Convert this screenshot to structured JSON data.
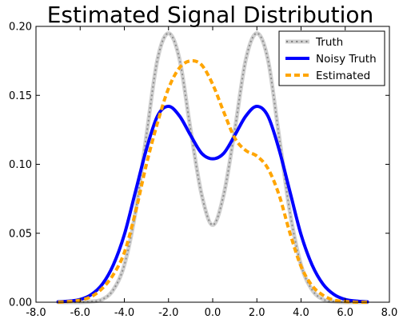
{
  "chart_data": {
    "type": "line",
    "title": "Estimated Signal Distribution",
    "xlabel": "",
    "ylabel": "",
    "xlim": [
      -8.0,
      8.0
    ],
    "ylim": [
      0.0,
      0.2
    ],
    "xticks": [
      "-8.0",
      "-6.0",
      "-4.0",
      "-2.0",
      "0.0",
      "2.0",
      "4.0",
      "6.0",
      "8.0"
    ],
    "yticks": [
      "0.00",
      "0.05",
      "0.10",
      "0.15",
      "0.20"
    ],
    "grid": false,
    "legend_position": "top-right",
    "series": [
      {
        "name": "Truth",
        "color": "#b0b0b0",
        "style": "solid-with-star-markers",
        "x": [
          -7.0,
          -6.5,
          -6.0,
          -5.5,
          -5.0,
          -4.5,
          -4.0,
          -3.5,
          -3.0,
          -2.5,
          -2.0,
          -1.5,
          -1.0,
          -0.5,
          0.0,
          0.5,
          1.0,
          1.5,
          2.0,
          2.5,
          3.0,
          3.5,
          4.0,
          4.5,
          5.0,
          5.5,
          6.0,
          6.5,
          7.0
        ],
        "y": [
          0.0,
          0.0,
          0.0,
          0.0005,
          0.002,
          0.009,
          0.027,
          0.065,
          0.121,
          0.176,
          0.195,
          0.176,
          0.125,
          0.078,
          0.056,
          0.078,
          0.125,
          0.176,
          0.195,
          0.176,
          0.121,
          0.065,
          0.027,
          0.009,
          0.002,
          0.0005,
          0.0,
          0.0,
          0.0
        ]
      },
      {
        "name": "Noisy Truth",
        "color": "#0000ff",
        "style": "solid",
        "x": [
          -7.0,
          -6.5,
          -6.0,
          -5.5,
          -5.0,
          -4.5,
          -4.0,
          -3.5,
          -3.0,
          -2.5,
          -2.0,
          -1.5,
          -1.0,
          -0.5,
          0.0,
          0.5,
          1.0,
          1.5,
          2.0,
          2.5,
          3.0,
          3.5,
          4.0,
          4.5,
          5.0,
          5.5,
          6.0,
          6.5,
          7.0
        ],
        "y": [
          0.0003,
          0.0008,
          0.002,
          0.0055,
          0.013,
          0.027,
          0.049,
          0.08,
          0.111,
          0.135,
          0.142,
          0.135,
          0.121,
          0.108,
          0.104,
          0.108,
          0.121,
          0.135,
          0.142,
          0.135,
          0.111,
          0.08,
          0.049,
          0.027,
          0.013,
          0.0055,
          0.002,
          0.0008,
          0.0003
        ]
      },
      {
        "name": "Estimated",
        "color": "#ffa500",
        "style": "dashed",
        "x": [
          -7.0,
          -6.5,
          -6.0,
          -5.5,
          -5.0,
          -4.5,
          -4.0,
          -3.5,
          -3.0,
          -2.5,
          -2.0,
          -1.5,
          -1.0,
          -0.5,
          0.0,
          0.5,
          1.0,
          1.5,
          2.0,
          2.5,
          3.0,
          3.5,
          4.0,
          4.5,
          5.0,
          5.5,
          6.0,
          6.5,
          7.0
        ],
        "y": [
          0.0,
          0.0005,
          0.0015,
          0.004,
          0.01,
          0.02,
          0.036,
          0.065,
          0.1,
          0.13,
          0.155,
          0.17,
          0.175,
          0.172,
          0.158,
          0.138,
          0.119,
          0.11,
          0.106,
          0.097,
          0.078,
          0.05,
          0.026,
          0.012,
          0.005,
          0.0015,
          0.0005,
          0.0,
          0.0
        ]
      }
    ]
  }
}
